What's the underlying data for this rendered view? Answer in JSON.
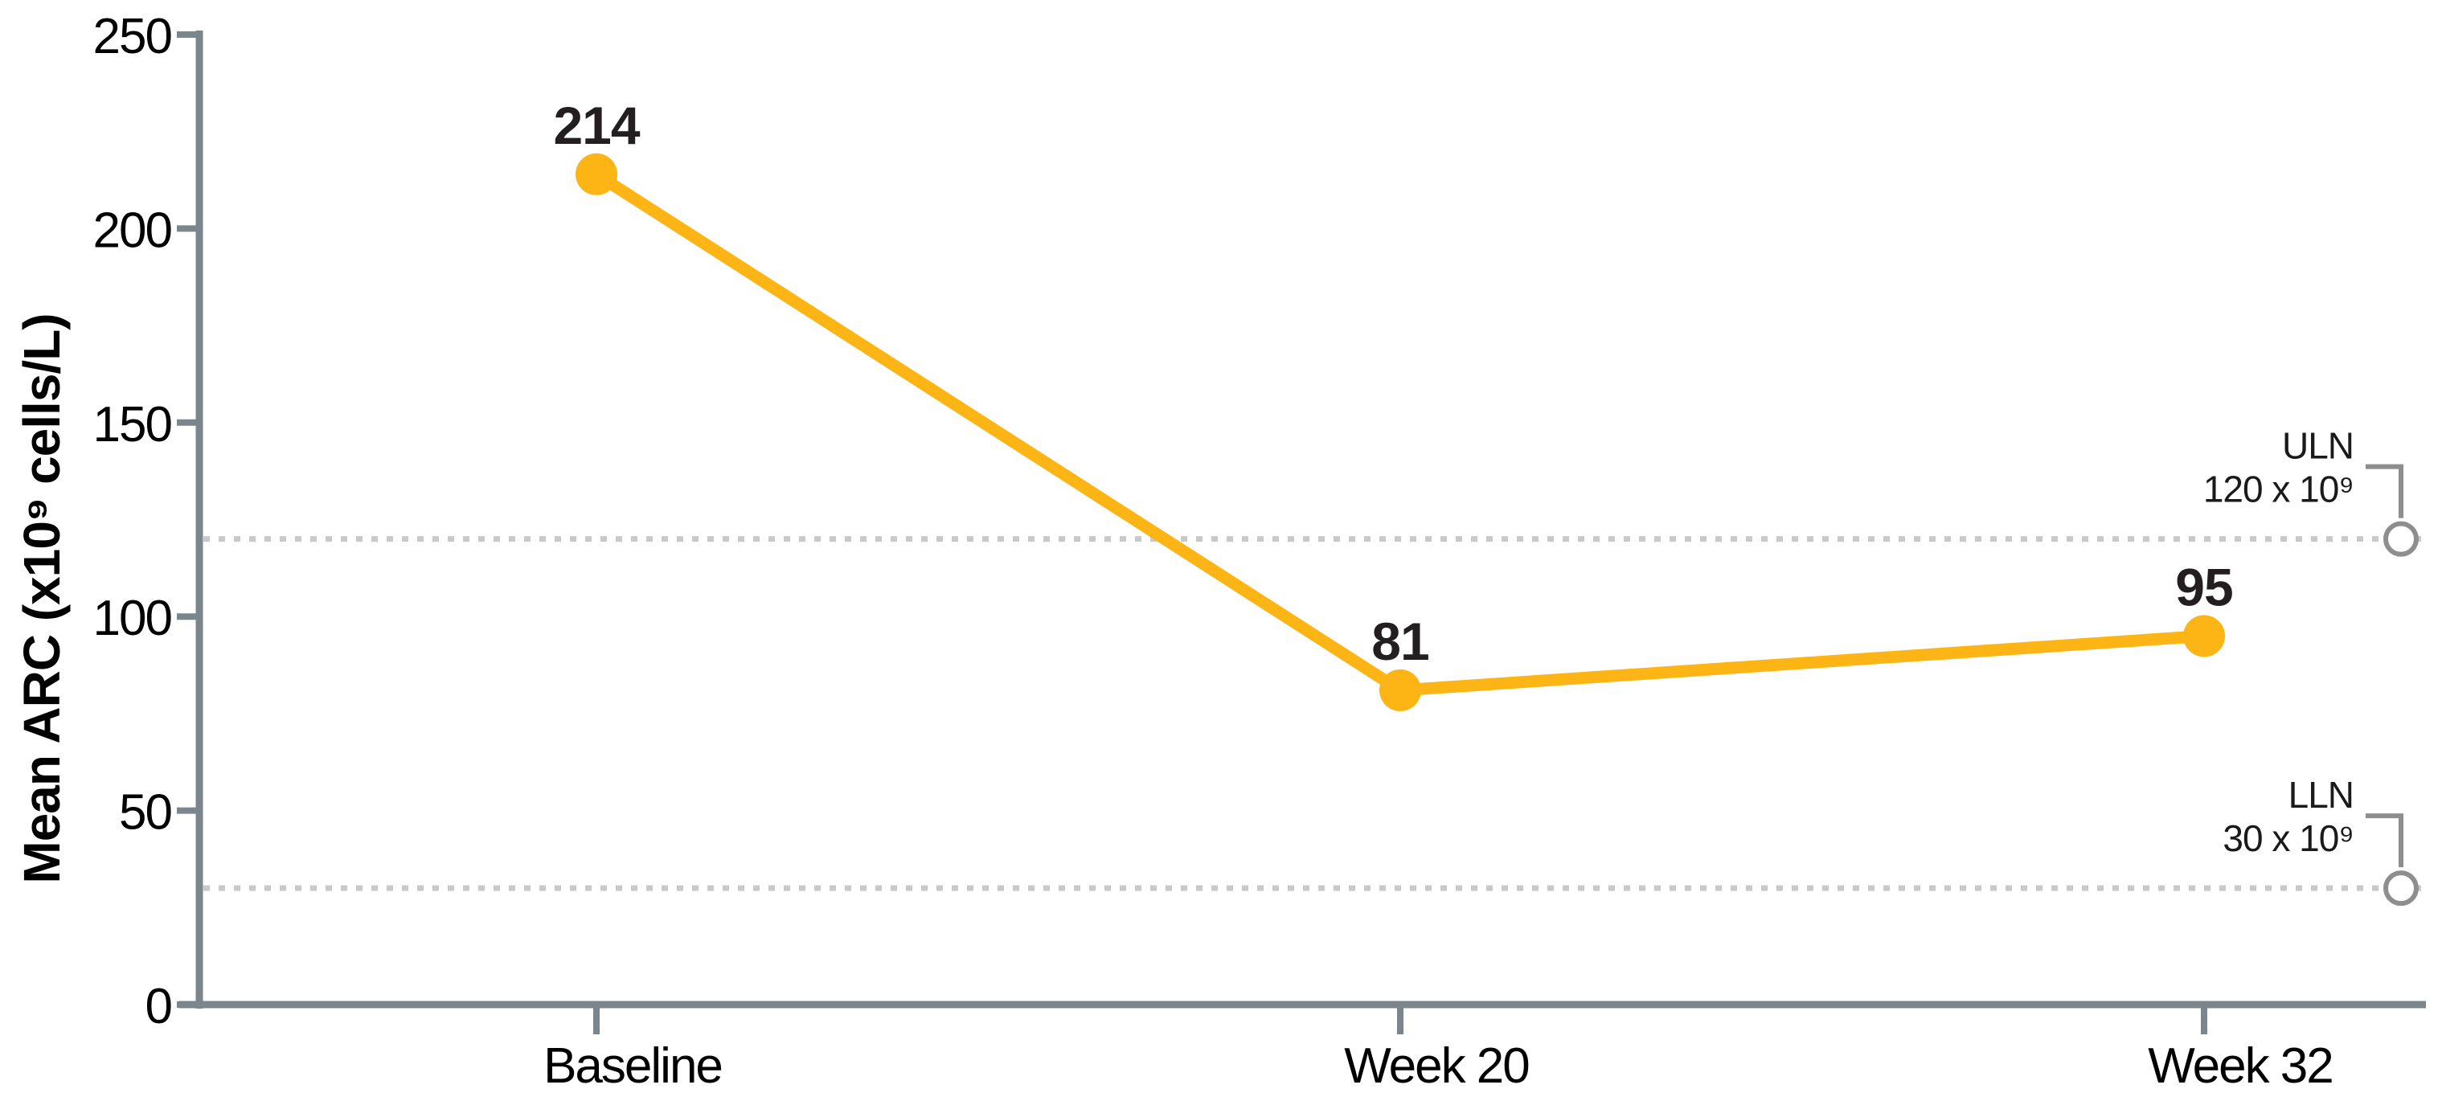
{
  "chart_data": {
    "type": "line",
    "title": "",
    "categories": [
      "Baseline",
      "Week 20",
      "Week 32"
    ],
    "series": [
      {
        "name": "Mean ARC",
        "values": [
          214,
          81,
          95
        ],
        "point_labels": [
          "214",
          "81",
          "95"
        ],
        "color": "#FDB415"
      }
    ],
    "xlabel": "",
    "ylabel": "Mean ARC (x10⁹ cells/L)",
    "ylim": [
      0,
      250
    ],
    "yticks": [
      "0",
      "50",
      "100",
      "150",
      "200",
      "250"
    ],
    "grid": "off",
    "legend": "none",
    "reference_lines": [
      {
        "id": "uln",
        "value": 120,
        "label_top": "ULN",
        "label_bottom": "120 x 10⁹"
      },
      {
        "id": "lln",
        "value": 30,
        "label_top": "LLN",
        "label_bottom": "30 x 10⁹"
      }
    ]
  },
  "colors": {
    "series_line": "#FDB415",
    "axis": "#7B868C",
    "reference_dash": "#C9C9C9",
    "callout": "#8E8E8E",
    "data_label": "#231F20",
    "tick_label": "#000000",
    "background": "#FFFFFF"
  }
}
